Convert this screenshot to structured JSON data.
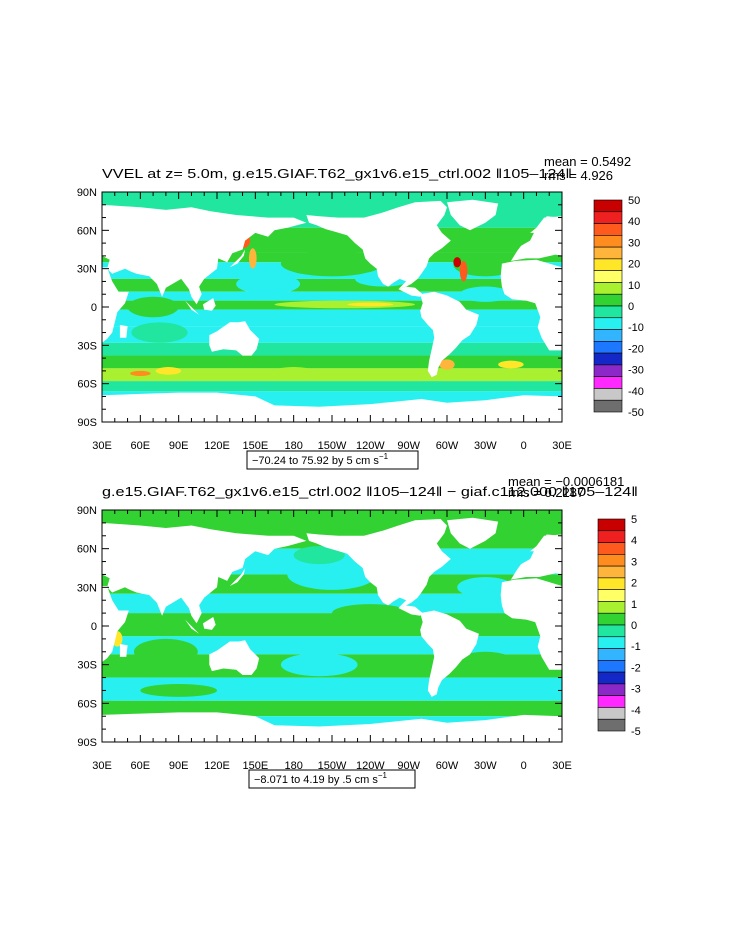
{
  "chart_data": [
    {
      "type": "heatmap",
      "title": "VVEL at z=    5.0m, g.e15.GIAF.T62_gx1v6.e15_ctrl.002 ‖105–124‖",
      "stats": {
        "mean": "mean = 0.5492",
        "rms": "rms = 4.926"
      },
      "range_label": "−70.24 to 75.92 by 5 cm s",
      "range_sup": "−1",
      "x_ticks": [
        "30E",
        "60E",
        "90E",
        "120E",
        "150E",
        "180",
        "150W",
        "120W",
        "90W",
        "60W",
        "30W",
        "0",
        "30E"
      ],
      "y_ticks": [
        "90N",
        "60N",
        "30N",
        "0",
        "30S",
        "60S",
        "90S"
      ],
      "xlim": [
        30,
        390
      ],
      "ylim": [
        -90,
        90
      ],
      "colorbar": {
        "labels": [
          "50",
          "40",
          "30",
          "20",
          "10",
          "0",
          "-10",
          "-20",
          "-30",
          "-40",
          "-50"
        ],
        "colors": [
          "#c80000",
          "#ee2020",
          "#ff5a1e",
          "#ff8c1e",
          "#ffb43c",
          "#ffe628",
          "#ffff66",
          "#a8f030",
          "#32d232",
          "#20e6a0",
          "#28f0f0",
          "#32b4ff",
          "#1e78ff",
          "#1428c8",
          "#8c28c8",
          "#ff28ff",
          "#c8c8c8",
          "#6e6e6e"
        ]
      }
    },
    {
      "type": "heatmap",
      "title": "g.e15.GIAF.T62_gx1v6.e15_ctrl.002 ‖105–124‖ − giaf.c112.000 ‖105–124‖",
      "stats": {
        "mean": "mean = −0.0006181",
        "rms": "rms = 0.2287"
      },
      "range_label": "−8.071 to 4.19 by .5 cm s",
      "range_sup": "−1",
      "x_ticks": [
        "30E",
        "60E",
        "90E",
        "120E",
        "150E",
        "180",
        "150W",
        "120W",
        "90W",
        "60W",
        "30W",
        "0",
        "30E"
      ],
      "y_ticks": [
        "90N",
        "60N",
        "30N",
        "0",
        "30S",
        "60S",
        "90S"
      ],
      "xlim": [
        30,
        390
      ],
      "ylim": [
        -90,
        90
      ],
      "colorbar": {
        "labels": [
          "5",
          "4",
          "3",
          "2",
          "1",
          "0",
          "-1",
          "-2",
          "-3",
          "-4",
          "-5"
        ],
        "colors": [
          "#c80000",
          "#ee2020",
          "#ff5a1e",
          "#ff8c1e",
          "#ffb43c",
          "#ffe628",
          "#ffff66",
          "#a8f030",
          "#32d232",
          "#20e6a0",
          "#28f0f0",
          "#32b4ff",
          "#1e78ff",
          "#1428c8",
          "#8c28c8",
          "#ff28ff",
          "#c8c8c8",
          "#6e6e6e"
        ]
      }
    }
  ]
}
